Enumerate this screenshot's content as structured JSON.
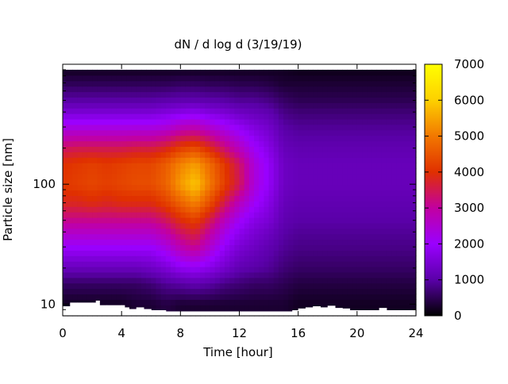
{
  "chart_data": {
    "type": "heatmap",
    "title": "dN / d log d (3/19/19)",
    "xlabel": "Time [hour]",
    "ylabel": "Particle size [nm]",
    "xlim": [
      0,
      24
    ],
    "ylim": [
      8,
      1000
    ],
    "y_scale": "log",
    "x_ticks": [
      0,
      4,
      8,
      12,
      16,
      20,
      24
    ],
    "x_tick_labels": [
      "0",
      "4",
      "8",
      "12",
      "16",
      "20",
      "24"
    ],
    "y_ticks": [
      10,
      100
    ],
    "y_tick_labels": [
      "10",
      "100"
    ],
    "colorbar": {
      "min": 0,
      "max": 7000,
      "ticks": [
        0,
        1000,
        2000,
        3000,
        4000,
        5000,
        6000,
        7000
      ],
      "tick_labels": [
        "0",
        "1000",
        "2000",
        "3000",
        "4000",
        "5000",
        "6000",
        "7000"
      ],
      "colormap": [
        "#000000",
        "#5a00a8",
        "#9a00ff",
        "#c200a0",
        "#e03000",
        "#f27800",
        "#fdd000",
        "#ffff00"
      ]
    },
    "grid": false,
    "legend": "colorbar-right",
    "time_hours": [
      0,
      1,
      2,
      3,
      4,
      5,
      6,
      7,
      8,
      9,
      10,
      11,
      12,
      13,
      14,
      15,
      16,
      17,
      18,
      19,
      20,
      21,
      22,
      23,
      24
    ],
    "diameters_nm": [
      10,
      15,
      20,
      30,
      40,
      50,
      70,
      100,
      150,
      200,
      300,
      400,
      500,
      700,
      900
    ],
    "values": [
      [
        200,
        200,
        200,
        200,
        200,
        300,
        300,
        400,
        300,
        300,
        300,
        300,
        300,
        300,
        300,
        300,
        200,
        200,
        200,
        200,
        200,
        200,
        200,
        200,
        200
      ],
      [
        600,
        600,
        600,
        600,
        600,
        600,
        700,
        900,
        1000,
        1100,
        1000,
        800,
        700,
        600,
        600,
        500,
        400,
        400,
        400,
        400,
        400,
        400,
        400,
        400,
        400
      ],
      [
        1200,
        1200,
        1200,
        1200,
        1200,
        1200,
        1300,
        1500,
        1800,
        1900,
        1700,
        1400,
        1100,
        1000,
        900,
        700,
        600,
        600,
        600,
        600,
        600,
        600,
        600,
        600,
        600
      ],
      [
        2000,
        2000,
        2000,
        2000,
        2000,
        2000,
        2000,
        2300,
        2800,
        3100,
        2500,
        1900,
        1500,
        1300,
        1100,
        900,
        800,
        800,
        800,
        800,
        800,
        800,
        800,
        800,
        800
      ],
      [
        2600,
        2600,
        2600,
        2600,
        2600,
        2600,
        2600,
        2900,
        3400,
        3700,
        3000,
        2300,
        1800,
        1500,
        1300,
        1000,
        900,
        900,
        900,
        900,
        900,
        900,
        900,
        900,
        900
      ],
      [
        3100,
        3100,
        3100,
        3100,
        3100,
        3100,
        3100,
        3400,
        3900,
        4200,
        3500,
        2700,
        2100,
        1700,
        1500,
        1100,
        1000,
        1000,
        1000,
        1000,
        1000,
        1000,
        1000,
        1000,
        1000
      ],
      [
        3800,
        3800,
        3900,
        3800,
        3900,
        3900,
        3900,
        4200,
        4700,
        5100,
        4400,
        3500,
        2700,
        2100,
        1700,
        1200,
        1100,
        1100,
        1100,
        1100,
        1100,
        1100,
        1100,
        1100,
        1100
      ],
      [
        4100,
        4200,
        4300,
        4200,
        4300,
        4400,
        4400,
        4700,
        5400,
        5900,
        5000,
        4200,
        3500,
        2400,
        1900,
        1300,
        1200,
        1200,
        1200,
        1200,
        1200,
        1200,
        1200,
        1200,
        1200
      ],
      [
        4000,
        4100,
        4200,
        4100,
        4200,
        4300,
        4300,
        4600,
        5100,
        5400,
        4800,
        4100,
        3400,
        2400,
        1900,
        1300,
        1200,
        1200,
        1200,
        1200,
        1200,
        1200,
        1200,
        1200,
        1200
      ],
      [
        3400,
        3500,
        3500,
        3500,
        3500,
        3600,
        3600,
        3800,
        4200,
        4400,
        3900,
        3300,
        2700,
        2100,
        1700,
        1200,
        1100,
        1100,
        1100,
        1100,
        1100,
        1100,
        1100,
        1100,
        1100
      ],
      [
        2300,
        2300,
        2300,
        2300,
        2300,
        2300,
        2300,
        2400,
        2700,
        2800,
        2500,
        2200,
        1900,
        1600,
        1400,
        1000,
        900,
        900,
        900,
        900,
        900,
        900,
        900,
        900,
        900
      ],
      [
        1500,
        1500,
        1500,
        1500,
        1500,
        1500,
        1500,
        1600,
        1700,
        1800,
        1600,
        1500,
        1300,
        1200,
        1100,
        800,
        700,
        700,
        700,
        700,
        700,
        700,
        700,
        700,
        700
      ],
      [
        1000,
        1000,
        1000,
        1000,
        1000,
        1000,
        1000,
        1050,
        1100,
        1100,
        1050,
        1000,
        900,
        900,
        800,
        600,
        500,
        500,
        500,
        500,
        500,
        500,
        500,
        500,
        500
      ],
      [
        500,
        500,
        500,
        500,
        500,
        500,
        500,
        500,
        550,
        550,
        500,
        500,
        450,
        450,
        400,
        300,
        300,
        300,
        300,
        300,
        300,
        300,
        300,
        300,
        300
      ],
      [
        200,
        200,
        200,
        200,
        200,
        200,
        200,
        200,
        200,
        200,
        200,
        200,
        200,
        200,
        200,
        200,
        150,
        150,
        150,
        150,
        150,
        150,
        150,
        150,
        150
      ]
    ],
    "lower_cutoff_nm": [
      [
        0,
        9.6
      ],
      [
        0.5,
        10.3
      ],
      [
        1,
        10.3
      ],
      [
        2,
        10.3
      ],
      [
        2.25,
        10.7
      ],
      [
        2.5,
        9.8
      ],
      [
        3,
        9.8
      ],
      [
        4,
        9.8
      ],
      [
        4.2,
        9.4
      ],
      [
        4.5,
        9.1
      ],
      [
        5,
        9.4
      ],
      [
        5.5,
        9.1
      ],
      [
        6,
        8.9
      ],
      [
        7,
        8.7
      ],
      [
        8,
        8.7
      ],
      [
        9,
        8.7
      ],
      [
        10,
        8.7
      ],
      [
        11,
        8.7
      ],
      [
        12,
        8.7
      ],
      [
        13,
        8.7
      ],
      [
        14,
        8.7
      ],
      [
        15,
        8.7
      ],
      [
        15.6,
        8.9
      ],
      [
        16,
        9.2
      ],
      [
        16.5,
        9.4
      ],
      [
        17,
        9.6
      ],
      [
        17.5,
        9.4
      ],
      [
        18,
        9.7
      ],
      [
        18.5,
        9.3
      ],
      [
        19,
        9.2
      ],
      [
        19.5,
        8.9
      ],
      [
        20,
        8.9
      ],
      [
        21,
        8.9
      ],
      [
        21.5,
        9.3
      ],
      [
        22,
        8.9
      ],
      [
        23,
        8.9
      ],
      [
        24,
        8.9
      ]
    ]
  }
}
